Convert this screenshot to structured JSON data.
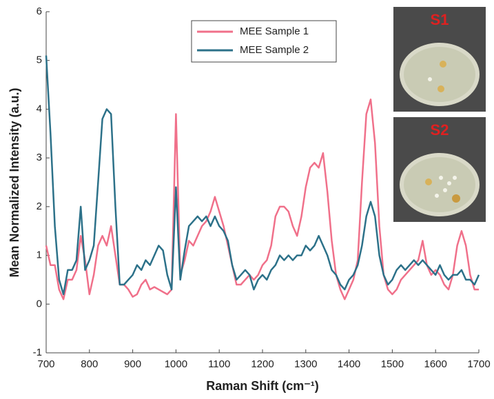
{
  "chart_data": {
    "type": "line",
    "x_label": "Raman Shift (cm⁻¹)",
    "y_label": "Mean Normalized Intensity (a.u.)",
    "x": [
      700,
      710,
      720,
      730,
      740,
      750,
      760,
      770,
      780,
      790,
      800,
      810,
      820,
      830,
      840,
      850,
      860,
      870,
      880,
      890,
      900,
      910,
      920,
      930,
      940,
      950,
      960,
      970,
      980,
      990,
      1000,
      1010,
      1020,
      1030,
      1040,
      1050,
      1060,
      1070,
      1080,
      1090,
      1100,
      1110,
      1120,
      1130,
      1140,
      1150,
      1160,
      1170,
      1180,
      1190,
      1200,
      1210,
      1220,
      1230,
      1240,
      1250,
      1260,
      1270,
      1280,
      1290,
      1300,
      1310,
      1320,
      1330,
      1340,
      1350,
      1360,
      1370,
      1380,
      1390,
      1400,
      1410,
      1420,
      1430,
      1440,
      1450,
      1460,
      1470,
      1480,
      1490,
      1500,
      1510,
      1520,
      1530,
      1540,
      1550,
      1560,
      1570,
      1580,
      1590,
      1600,
      1610,
      1620,
      1630,
      1640,
      1650,
      1660,
      1670,
      1680,
      1690,
      1700
    ],
    "series": [
      {
        "name": "MEE Sample 1",
        "color": "#f0708a",
        "values": [
          1.2,
          0.8,
          0.8,
          0.3,
          0.1,
          0.5,
          0.5,
          0.7,
          1.4,
          0.9,
          0.2,
          0.6,
          1.2,
          1.4,
          1.2,
          1.6,
          1.0,
          0.4,
          0.4,
          0.3,
          0.15,
          0.2,
          0.4,
          0.5,
          0.3,
          0.35,
          0.3,
          0.25,
          0.2,
          0.3,
          3.9,
          0.6,
          0.9,
          1.3,
          1.2,
          1.4,
          1.6,
          1.7,
          1.9,
          2.2,
          1.9,
          1.6,
          1.2,
          0.8,
          0.4,
          0.4,
          0.5,
          0.6,
          0.5,
          0.6,
          0.8,
          0.9,
          1.2,
          1.8,
          2.0,
          2.0,
          1.9,
          1.6,
          1.4,
          1.8,
          2.4,
          2.8,
          2.9,
          2.8,
          3.1,
          2.3,
          1.3,
          0.6,
          0.3,
          0.1,
          0.3,
          0.5,
          0.9,
          2.5,
          3.9,
          4.2,
          3.3,
          1.6,
          0.6,
          0.3,
          0.2,
          0.3,
          0.5,
          0.6,
          0.7,
          0.8,
          0.9,
          1.3,
          0.8,
          0.6,
          0.7,
          0.6,
          0.4,
          0.3,
          0.6,
          1.2,
          1.5,
          1.2,
          0.6,
          0.3,
          0.3
        ]
      },
      {
        "name": "MEE Sample 2",
        "color": "#2c7189",
        "values": [
          5.1,
          3.5,
          1.6,
          0.5,
          0.2,
          0.7,
          0.7,
          0.9,
          2.0,
          0.7,
          0.9,
          1.2,
          2.5,
          3.8,
          4.0,
          3.9,
          2.0,
          0.4,
          0.4,
          0.5,
          0.6,
          0.8,
          0.7,
          0.9,
          0.8,
          1.0,
          1.2,
          1.1,
          0.6,
          0.3,
          2.4,
          0.5,
          1.1,
          1.6,
          1.7,
          1.8,
          1.7,
          1.8,
          1.6,
          1.8,
          1.6,
          1.5,
          1.3,
          0.8,
          0.5,
          0.6,
          0.7,
          0.6,
          0.3,
          0.5,
          0.6,
          0.5,
          0.7,
          0.8,
          1.0,
          0.9,
          1.0,
          0.9,
          1.0,
          1.0,
          1.2,
          1.1,
          1.2,
          1.4,
          1.2,
          1.0,
          0.7,
          0.6,
          0.4,
          0.3,
          0.5,
          0.6,
          0.8,
          1.2,
          1.8,
          2.1,
          1.8,
          1.0,
          0.6,
          0.4,
          0.5,
          0.7,
          0.8,
          0.7,
          0.8,
          0.9,
          0.8,
          0.9,
          0.8,
          0.7,
          0.6,
          0.8,
          0.6,
          0.5,
          0.6,
          0.6,
          0.7,
          0.5,
          0.5,
          0.4,
          0.6
        ]
      }
    ],
    "xlim": [
      700,
      1700
    ],
    "xticks": [
      700,
      800,
      900,
      1000,
      1100,
      1200,
      1300,
      1400,
      1500,
      1600,
      1700
    ],
    "ylim": [
      -1,
      6
    ],
    "yticks": [
      -1,
      0,
      1,
      2,
      3,
      4,
      5,
      6
    ],
    "legend": "top-center"
  },
  "insets": [
    {
      "label": "S1"
    },
    {
      "label": "S2"
    }
  ]
}
